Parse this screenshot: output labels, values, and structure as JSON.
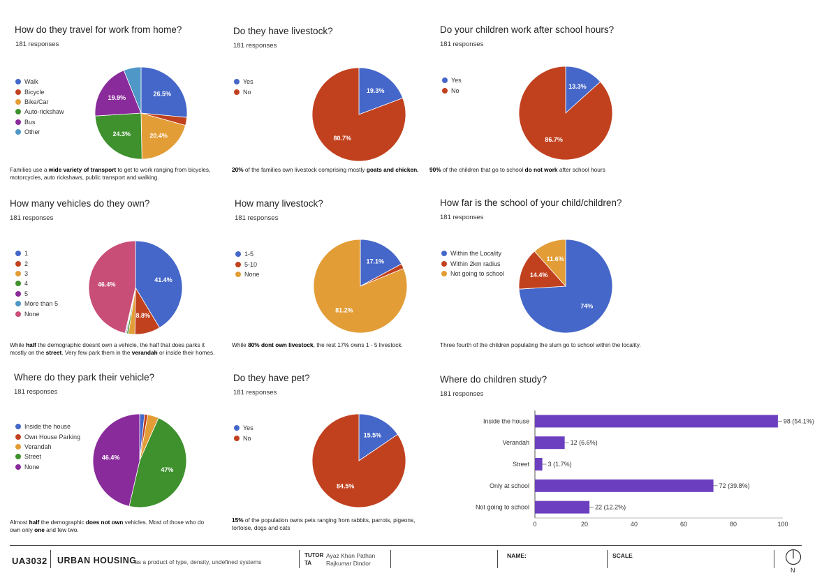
{
  "chart_data": [
    {
      "type": "pie",
      "title": "How do they travel for work from home?",
      "responses": "181 responses",
      "labels": [
        "Walk",
        "Bicycle",
        "Bike/Car",
        "Auto-rickshaw",
        "Bus",
        "Other"
      ],
      "values": [
        26.5,
        2.8,
        20.4,
        24.3,
        19.9,
        6.1
      ],
      "colors": [
        "#4567c9",
        "#c1411f",
        "#e39d37",
        "#3e912d",
        "#8a2b9b",
        "#4f97c6"
      ],
      "slice_labels": [
        "26.5%",
        "",
        "20.4%",
        "24.3%",
        "19.9%",
        ""
      ],
      "caption_parts": [
        {
          "t": "Families use a ",
          "b": false
        },
        {
          "t": "wide variety of transport",
          "b": true
        },
        {
          "t": " to get to work ranging from bicycles, motorcycles, auto rickshaws, public transport and walking.",
          "b": false
        }
      ]
    },
    {
      "type": "pie",
      "title": "Do they have livestock?",
      "responses": "181 responses",
      "labels": [
        "Yes",
        "No"
      ],
      "values": [
        19.3,
        80.7
      ],
      "colors": [
        "#4567c9",
        "#c1411f"
      ],
      "slice_labels": [
        "19.3%",
        "80.7%"
      ],
      "caption_parts": [
        {
          "t": "20%",
          "b": true
        },
        {
          "t": " of the families own livestock comprising mostly ",
          "b": false
        },
        {
          "t": "goats and chicken.",
          "b": true
        }
      ]
    },
    {
      "type": "pie",
      "title": "Do your children work after school hours?",
      "responses": "181 responses",
      "labels": [
        "Yes",
        "No"
      ],
      "values": [
        13.3,
        86.7
      ],
      "colors": [
        "#4567c9",
        "#c1411f"
      ],
      "slice_labels": [
        "13.3%",
        "86.7%"
      ],
      "caption_parts": [
        {
          "t": "90%",
          "b": true
        },
        {
          "t": " of the children that go to school ",
          "b": false
        },
        {
          "t": "do not work",
          "b": true
        },
        {
          "t": " after school hours",
          "b": false
        }
      ]
    },
    {
      "type": "pie",
      "title": "How many vehicles do they own?",
      "responses": "181 responses",
      "labels": [
        "1",
        "2",
        "3",
        "4",
        "5",
        "More than 5",
        "None"
      ],
      "values": [
        41.4,
        8.8,
        2.2,
        0.6,
        0.3,
        0.3,
        46.4
      ],
      "colors": [
        "#4567c9",
        "#c1411f",
        "#e39d37",
        "#3e912d",
        "#8a2b9b",
        "#4f97c6",
        "#c84e78"
      ],
      "slice_labels": [
        "41.4%",
        "8.8%",
        "",
        "",
        "",
        "",
        "46.4%"
      ],
      "caption_parts": [
        {
          "t": "While ",
          "b": false
        },
        {
          "t": "half",
          "b": true
        },
        {
          "t": " the demographic doesnt own a vehicle, the half that does parks it mostly on the ",
          "b": false
        },
        {
          "t": "street",
          "b": true
        },
        {
          "t": ". Very few park them in the ",
          "b": false
        },
        {
          "t": "verandah",
          "b": true
        },
        {
          "t": " or inside their homes.",
          "b": false
        }
      ]
    },
    {
      "type": "pie",
      "title": "How many livestock?",
      "responses": "181 responses",
      "labels": [
        "1-5",
        "5-10",
        "None"
      ],
      "values": [
        17.1,
        1.7,
        81.2
      ],
      "colors": [
        "#4567c9",
        "#c1411f",
        "#e39d37"
      ],
      "slice_labels": [
        "17.1%",
        "",
        "81.2%"
      ],
      "caption_parts": [
        {
          "t": "While ",
          "b": false
        },
        {
          "t": "80% dont own livestock",
          "b": true
        },
        {
          "t": ", the rest 17% owns 1 - 5 livestock.",
          "b": false
        }
      ]
    },
    {
      "type": "pie",
      "title": "How far is the school of your child/children?",
      "responses": "181 responses",
      "labels": [
        "Within the Locality",
        "Within 2km radius",
        "Not going to school"
      ],
      "values": [
        74,
        14.4,
        11.6
      ],
      "colors": [
        "#4567c9",
        "#c1411f",
        "#e39d37"
      ],
      "slice_labels": [
        "74%",
        "14.4%",
        "11.6%"
      ],
      "caption_parts": [
        {
          "t": "Three fourth of the children populating the slum go to school within the locality.",
          "b": false
        }
      ]
    },
    {
      "type": "pie",
      "title": "Where do they park their vehicle?",
      "responses": "181 responses",
      "labels": [
        "Inside the house",
        "Own House Parking",
        "Verandah",
        "Street",
        "None"
      ],
      "values": [
        1.7,
        1.1,
        3.8,
        47,
        46.4
      ],
      "colors": [
        "#4567c9",
        "#c1411f",
        "#e39d37",
        "#3e912d",
        "#8a2b9b"
      ],
      "slice_labels": [
        "",
        "",
        "",
        "47%",
        "46.4%"
      ],
      "caption_parts": [
        {
          "t": "Almost ",
          "b": false
        },
        {
          "t": "half",
          "b": true
        },
        {
          "t": " the demographic ",
          "b": false
        },
        {
          "t": "does not own",
          "b": true
        },
        {
          "t": " vehicles. Most of those who do own only ",
          "b": false
        },
        {
          "t": "one",
          "b": true
        },
        {
          "t": " and few two.",
          "b": false
        }
      ]
    },
    {
      "type": "pie",
      "title": "Do they have pet?",
      "responses": "181 responses",
      "labels": [
        "Yes",
        "No"
      ],
      "values": [
        15.5,
        84.5
      ],
      "colors": [
        "#4567c9",
        "#c1411f"
      ],
      "slice_labels": [
        "15.5%",
        "84.5%"
      ],
      "caption_parts": [
        {
          "t": "15%",
          "b": true
        },
        {
          "t": " of the population owns pets ranging from rabbits, parrots, pigeons, tortoise, dogs and cats",
          "b": false
        }
      ]
    },
    {
      "type": "bar",
      "orientation": "horizontal",
      "title": "Where do children study?",
      "responses": "181 responses",
      "categories": [
        "Inside the house",
        "Verandah",
        "Street",
        "Only at school",
        "Not going to school"
      ],
      "values": [
        98,
        12,
        3,
        72,
        22
      ],
      "value_labels": [
        "98 (54.1%)",
        "12 (6.6%)",
        "3 (1.7%)",
        "72 (39.8%)",
        "22 (12.2%)"
      ],
      "xlim": [
        0,
        100
      ],
      "xticks": [
        0,
        20,
        40,
        60,
        80,
        100
      ],
      "color": "#6b3fbf"
    }
  ],
  "footer": {
    "code": "UA3032",
    "title": "URBAN HOUSING",
    "subtitle": "as a product of type, density, undefined systems",
    "tutor_label": "TUTOR",
    "tutor_name": "Ayaz Khan Pathan",
    "ta_label": "TA",
    "ta_name": "Rajkumar Dindor",
    "name_label": "NAME:",
    "scale_label": "SCALE",
    "north_label": "N"
  }
}
